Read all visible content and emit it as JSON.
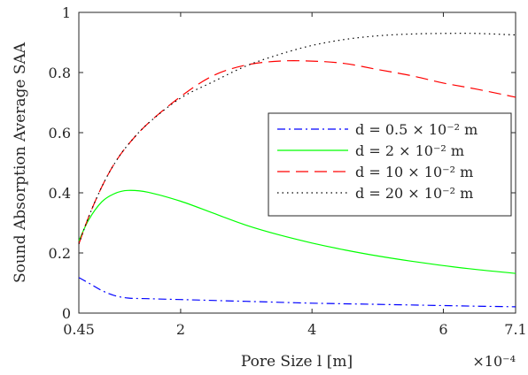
{
  "chart_data": {
    "type": "line",
    "title": "",
    "xlabel": "Pore Size l [m]",
    "ylabel": "Sound Absorption Average SAA",
    "x_multiplier_label": "×10⁻⁴",
    "xlim": [
      0.45,
      7.1
    ],
    "ylim": [
      0,
      1
    ],
    "xticks": [
      0.45,
      2,
      4,
      6,
      7.1
    ],
    "xtick_labels": [
      "0.45",
      "2",
      "4",
      "6",
      "7.1"
    ],
    "yticks": [
      0,
      0.2,
      0.4,
      0.6,
      0.8,
      1
    ],
    "ytick_labels": [
      "0",
      "0.2",
      "0.4",
      "0.6",
      "0.8",
      "1"
    ],
    "grid": false,
    "legend_position": "center-right",
    "series": [
      {
        "name": "d = 0.5 × 10⁻² m",
        "color": "#0000ff",
        "dash": "dash-dot",
        "x": [
          0.45,
          0.6,
          0.8,
          1.0,
          1.2,
          1.5,
          2.0,
          2.5,
          3.0,
          3.5,
          4.0,
          4.5,
          5.0,
          5.5,
          6.0,
          6.5,
          7.1
        ],
        "y": [
          0.118,
          0.1,
          0.075,
          0.058,
          0.05,
          0.048,
          0.045,
          0.042,
          0.039,
          0.036,
          0.033,
          0.031,
          0.029,
          0.027,
          0.025,
          0.023,
          0.021
        ]
      },
      {
        "name": "d = 2 × 10⁻² m",
        "color": "#00ff00",
        "dash": "solid",
        "x": [
          0.45,
          0.6,
          0.8,
          1.0,
          1.2,
          1.5,
          2.0,
          2.5,
          3.0,
          3.5,
          4.0,
          4.5,
          5.0,
          5.5,
          6.0,
          6.5,
          7.1
        ],
        "y": [
          0.24,
          0.31,
          0.37,
          0.398,
          0.408,
          0.402,
          0.372,
          0.332,
          0.292,
          0.26,
          0.233,
          0.21,
          0.19,
          0.173,
          0.158,
          0.145,
          0.132
        ]
      },
      {
        "name": "d = 10 × 10⁻² m",
        "color": "#ff0000",
        "dash": "dashed",
        "x": [
          0.45,
          0.6,
          0.8,
          1.0,
          1.2,
          1.5,
          2.0,
          2.5,
          3.0,
          3.5,
          4.0,
          4.5,
          5.0,
          5.5,
          6.0,
          6.5,
          7.1
        ],
        "y": [
          0.23,
          0.32,
          0.42,
          0.5,
          0.56,
          0.63,
          0.72,
          0.79,
          0.825,
          0.838,
          0.838,
          0.83,
          0.81,
          0.79,
          0.765,
          0.745,
          0.718
        ]
      },
      {
        "name": "d = 20 × 10⁻² m",
        "color": "#000000",
        "dash": "dotted",
        "x": [
          0.45,
          0.6,
          0.8,
          1.0,
          1.2,
          1.5,
          2.0,
          2.5,
          3.0,
          3.5,
          4.0,
          4.5,
          5.0,
          5.5,
          6.0,
          6.5,
          7.1
        ],
        "y": [
          0.23,
          0.32,
          0.42,
          0.5,
          0.56,
          0.63,
          0.715,
          0.77,
          0.822,
          0.86,
          0.89,
          0.91,
          0.922,
          0.928,
          0.93,
          0.93,
          0.925
        ]
      }
    ]
  }
}
